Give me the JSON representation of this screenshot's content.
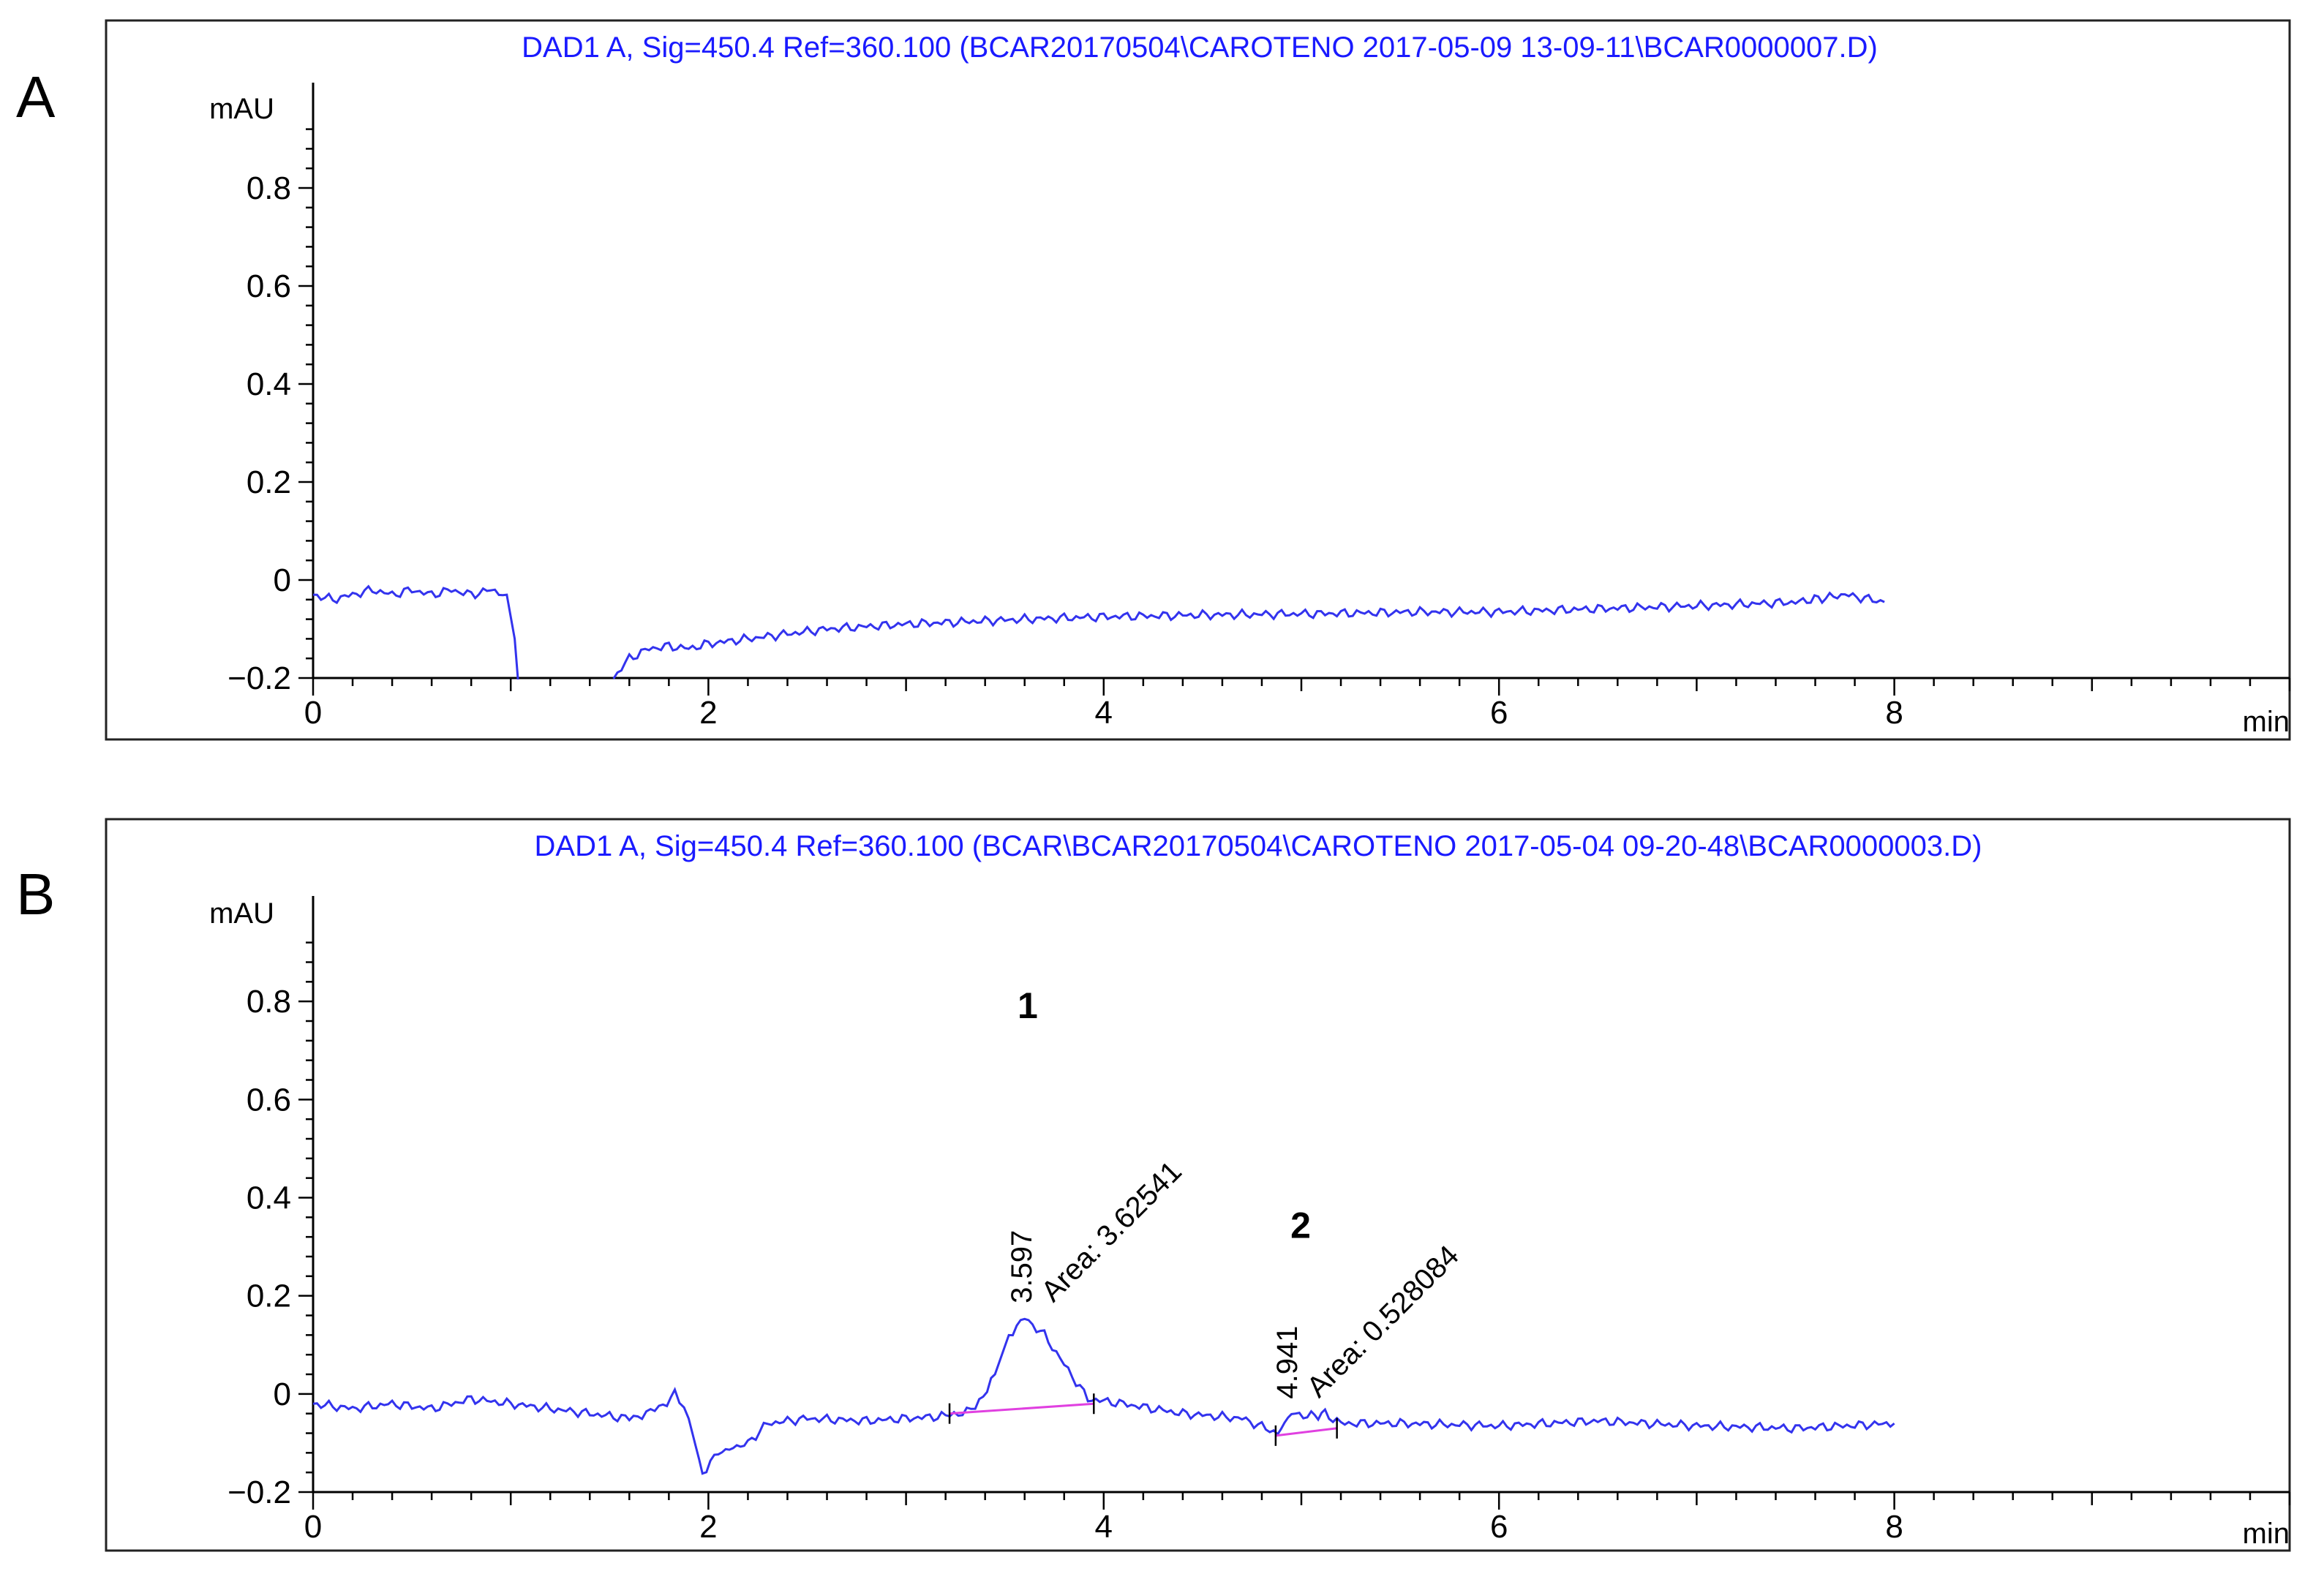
{
  "chart_data": [
    {
      "type": "line",
      "panel_label": "A",
      "title": "DAD1 A, Sig=450.4 Ref=360.100 (BCAR20170504\\CAROTENO 2017-05-09 13-09-11\\BCAR0000007.D)",
      "xlabel": "min",
      "ylabel": "mAU",
      "xlim": [
        0,
        10
      ],
      "ylim": [
        -0.2,
        1.0
      ],
      "x_ticks": [
        "0",
        "2",
        "4",
        "6",
        "8"
      ],
      "y_ticks": [
        "−0.2",
        "0",
        "0.2",
        "0.4",
        "0.6",
        "0.8"
      ],
      "line_color": "#3333ee",
      "series": [
        {
          "points": [
            [
              0.0,
              -0.03
            ],
            [
              0.1,
              -0.04
            ],
            [
              0.2,
              -0.03
            ],
            [
              0.3,
              -0.02
            ],
            [
              0.4,
              -0.03
            ],
            [
              0.5,
              -0.02
            ],
            [
              0.6,
              -0.03
            ],
            [
              0.7,
              -0.02
            ],
            [
              0.8,
              -0.03
            ],
            [
              0.9,
              -0.02
            ],
            [
              0.98,
              -0.03
            ],
            [
              1.02,
              -0.12
            ],
            [
              1.04,
              -0.22
            ]
          ]
        },
        {
          "points": [
            [
              1.52,
              -0.2
            ],
            [
              1.6,
              -0.16
            ],
            [
              1.7,
              -0.14
            ],
            [
              1.8,
              -0.135
            ],
            [
              1.9,
              -0.14
            ],
            [
              2.0,
              -0.13
            ],
            [
              2.2,
              -0.12
            ],
            [
              2.4,
              -0.11
            ],
            [
              2.6,
              -0.1
            ],
            [
              2.8,
              -0.095
            ],
            [
              3.0,
              -0.09
            ],
            [
              3.3,
              -0.085
            ],
            [
              3.6,
              -0.08
            ],
            [
              4.0,
              -0.075
            ],
            [
              4.4,
              -0.072
            ],
            [
              4.8,
              -0.07
            ],
            [
              5.2,
              -0.068
            ],
            [
              5.6,
              -0.065
            ],
            [
              6.0,
              -0.065
            ],
            [
              6.4,
              -0.06
            ],
            [
              6.8,
              -0.055
            ],
            [
              7.2,
              -0.05
            ],
            [
              7.5,
              -0.045
            ],
            [
              7.75,
              -0.03
            ],
            [
              7.95,
              -0.045
            ]
          ]
        }
      ],
      "peaks": []
    },
    {
      "type": "line",
      "panel_label": "B",
      "title": "DAD1 A, Sig=450.4 Ref=360.100 (BCAR\\BCAR20170504\\CAROTENO 2017-05-04 09-20-48\\BCAR0000003.D)",
      "xlabel": "min",
      "ylabel": "mAU",
      "xlim": [
        0,
        10
      ],
      "ylim": [
        -0.2,
        1.0
      ],
      "x_ticks": [
        "0",
        "2",
        "4",
        "6",
        "8"
      ],
      "y_ticks": [
        "−0.2",
        "0",
        "0.2",
        "0.4",
        "0.6",
        "0.8"
      ],
      "line_color": "#3333ee",
      "baseline_color": "#e040e0",
      "series": [
        {
          "points": [
            [
              0.0,
              -0.02
            ],
            [
              0.2,
              -0.03
            ],
            [
              0.4,
              -0.02
            ],
            [
              0.6,
              -0.03
            ],
            [
              0.8,
              -0.01
            ],
            [
              1.0,
              -0.02
            ],
            [
              1.2,
              -0.03
            ],
            [
              1.4,
              -0.04
            ],
            [
              1.6,
              -0.05
            ],
            [
              1.75,
              -0.03
            ],
            [
              1.83,
              0.0
            ],
            [
              1.9,
              -0.05
            ],
            [
              1.97,
              -0.16
            ],
            [
              2.05,
              -0.12
            ],
            [
              2.2,
              -0.1
            ],
            [
              2.3,
              -0.06
            ],
            [
              2.5,
              -0.05
            ],
            [
              2.8,
              -0.055
            ],
            [
              3.0,
              -0.05
            ],
            [
              3.2,
              -0.045
            ],
            [
              3.35,
              -0.03
            ],
            [
              3.45,
              0.04
            ],
            [
              3.52,
              0.12
            ],
            [
              3.6,
              0.155
            ],
            [
              3.7,
              0.12
            ],
            [
              3.8,
              0.06
            ],
            [
              3.92,
              -0.01
            ],
            [
              4.1,
              -0.02
            ],
            [
              4.4,
              -0.04
            ],
            [
              4.7,
              -0.05
            ],
            [
              4.88,
              -0.08
            ],
            [
              4.95,
              -0.04
            ],
            [
              5.05,
              -0.045
            ],
            [
              5.12,
              -0.04
            ],
            [
              5.2,
              -0.06
            ],
            [
              5.5,
              -0.06
            ],
            [
              6.0,
              -0.065
            ],
            [
              6.5,
              -0.055
            ],
            [
              7.0,
              -0.065
            ],
            [
              7.5,
              -0.07
            ],
            [
              8.0,
              -0.06
            ]
          ]
        }
      ],
      "peaks": [
        {
          "number": "1",
          "rt": "3.597",
          "area": "Area: 3.62541",
          "rt_min": 3.597,
          "apex": 0.155,
          "baseline": [
            [
              3.22,
              -0.04
            ],
            [
              3.95,
              -0.02
            ]
          ]
        },
        {
          "number": "2",
          "rt": "4.941",
          "area": "Area: 0.528084",
          "rt_min": 4.941,
          "apex": -0.04,
          "baseline": [
            [
              4.87,
              -0.085
            ],
            [
              5.18,
              -0.07
            ]
          ]
        }
      ]
    }
  ]
}
